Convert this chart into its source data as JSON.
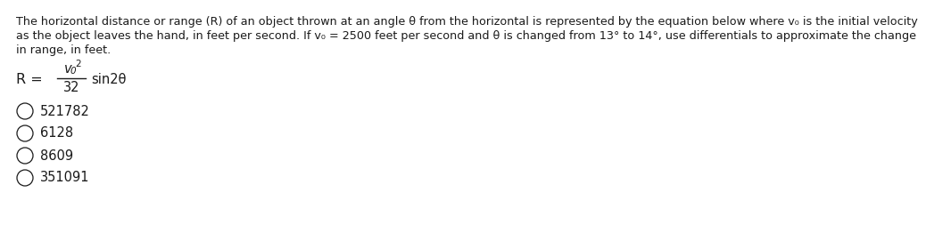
{
  "line1": "The horizontal distance or range (R) of an object thrown at an angle θ from the horizontal is represented by the equation below where v₀ is the initial velocity",
  "line2": "as the object leaves the hand, in feet per second. If v₀ = 2500 feet per second and θ is changed from 13° to 14°, use differentials to approximate the change",
  "line3": "in range, in feet.",
  "choices": [
    "521782",
    "6128",
    "8609",
    "351091"
  ],
  "background_color": "#ffffff",
  "text_color": "#1a1a1a",
  "font_size_body": 9.2,
  "font_size_eq": 10.5,
  "font_size_choices": 10.5
}
